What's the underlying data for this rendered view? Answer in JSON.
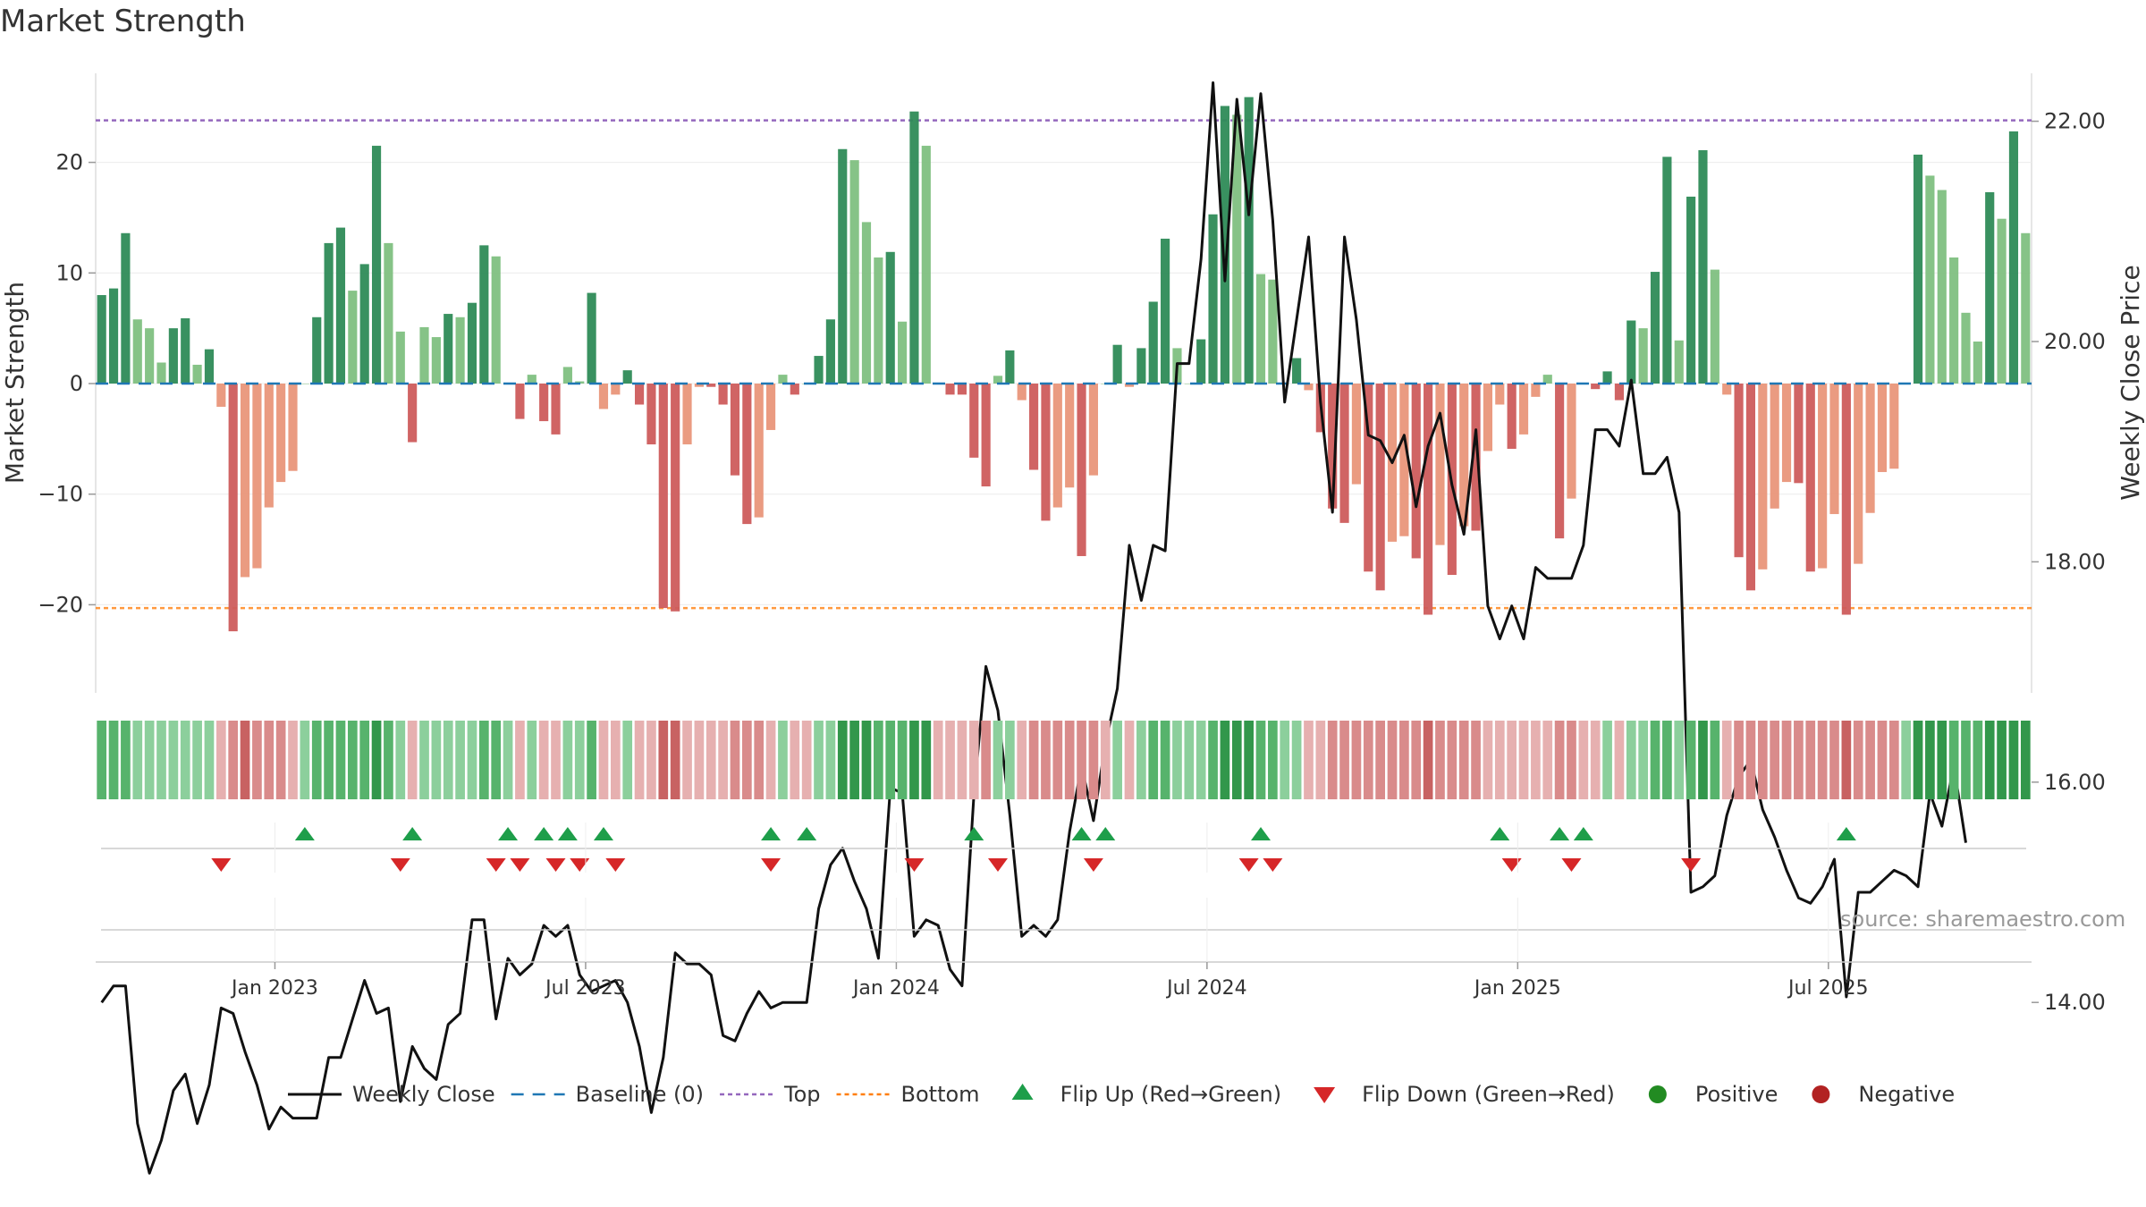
{
  "title": "Market Strength",
  "source": "source: sharemaestro.com",
  "colors": {
    "green_strong": "#2e8b57",
    "green_light": "#7fc081",
    "red_strong": "#cd5c5c",
    "red_light": "#e9967a",
    "close_line": "#111111",
    "baseline": "#1f77b4",
    "top_line": "#9467bd",
    "bottom_line": "#ff7f0e",
    "flip_up": "#1e9e4a",
    "flip_down": "#d62728",
    "positive": "#228b22",
    "negative": "#b22222"
  },
  "chart_data": {
    "type": "bar",
    "title": "Market Strength",
    "xlabel": "",
    "ylabel": "Market Strength",
    "y2label": "Weekly Close Price",
    "ylim": [
      -27.5,
      28
    ],
    "y2lim": [
      11.6,
      22.85
    ],
    "yticks": [
      20,
      10,
      0,
      -10,
      -20
    ],
    "y2ticks": [
      "22.00",
      "20.00",
      "18.00",
      "16.00",
      "14.00",
      "12.00"
    ],
    "xticks": [
      {
        "label": "Jan 2023",
        "week": 15
      },
      {
        "label": "Jul 2023",
        "week": 41
      },
      {
        "label": "Jan 2024",
        "week": 67
      },
      {
        "label": "Jul 2024",
        "week": 93
      },
      {
        "label": "Jan 2025",
        "week": 119
      },
      {
        "label": "Jul 2025",
        "week": 145
      }
    ],
    "top_level": 23.8,
    "bottom_level": -20.3,
    "strength": [
      8,
      8.6,
      13.6,
      5.8,
      5,
      1.9,
      5,
      5.9,
      1.7,
      3.1,
      -2.1,
      -22.4,
      -17.5,
      -16.7,
      -11.2,
      -8.9,
      -7.9,
      0,
      6,
      12.7,
      14.1,
      8.4,
      10.8,
      21.5,
      12.7,
      4.7,
      -5.3,
      5.1,
      4.2,
      6.3,
      6,
      7.3,
      12.5,
      11.5,
      0,
      -3.2,
      0.8,
      -3.4,
      -4.6,
      1.5,
      0.2,
      8.2,
      -2.3,
      -1,
      1.2,
      -1.9,
      -5.5,
      -20.3,
      -20.6,
      -5.5,
      -0.3,
      -0.3,
      -1.9,
      -8.3,
      -12.7,
      -12.1,
      -4.2,
      0.8,
      -1,
      0,
      2.5,
      5.8,
      21.2,
      20.2,
      14.6,
      11.4,
      11.9,
      5.6,
      24.6,
      21.5,
      0,
      -1,
      -1,
      -6.7,
      -9.3,
      0.7,
      3,
      -1.5,
      -7.8,
      -12.4,
      -11.2,
      -9.4,
      -15.6,
      -8.3,
      0,
      3.5,
      -0.3,
      3.2,
      7.4,
      13.1,
      3.2,
      0,
      4,
      15.3,
      25.1,
      24.3,
      25.9,
      9.9,
      9.4,
      0,
      2.3,
      -0.6,
      -4.4,
      -11.3,
      -12.6,
      -9.1,
      -17,
      -18.7,
      -14.3,
      -13.8,
      -15.8,
      -20.9,
      -14.6,
      -17.3,
      -12.9,
      -13.3,
      -6.1,
      -1.9,
      -5.9,
      -4.6,
      -1.2,
      0.8,
      -14,
      -10.4,
      0,
      -0.5,
      1.1,
      -1.5,
      5.7,
      5,
      10.1,
      20.5,
      3.9,
      16.9,
      21.1,
      10.3,
      -1,
      -15.7,
      -18.7,
      -16.8,
      -11.3,
      -8.9,
      -9,
      -17,
      -16.7,
      -11.8,
      -20.9,
      -16.3,
      -11.7,
      -8,
      -7.7,
      0,
      20.7,
      18.8,
      17.5,
      11.4,
      6.4,
      3.8,
      17.3,
      14.9,
      22.8,
      13.6
    ],
    "weekly_close": [
      14.0,
      14.15,
      14.15,
      12.9,
      12.45,
      12.75,
      13.2,
      13.35,
      12.9,
      13.25,
      13.95,
      13.9,
      13.55,
      13.25,
      12.85,
      13.05,
      12.95,
      12.95,
      12.95,
      13.5,
      13.5,
      13.85,
      14.2,
      13.9,
      13.95,
      13.1,
      13.6,
      13.4,
      13.3,
      13.8,
      13.9,
      14.75,
      14.75,
      13.85,
      14.4,
      14.25,
      14.35,
      14.7,
      14.6,
      14.7,
      14.25,
      14.1,
      14.15,
      14.2,
      14.0,
      13.6,
      13.0,
      13.5,
      14.45,
      14.35,
      14.35,
      14.25,
      13.7,
      13.65,
      13.9,
      14.1,
      13.95,
      14.0,
      14.0,
      14.0,
      14.85,
      15.25,
      15.4,
      15.1,
      14.85,
      14.4,
      15.95,
      15.9,
      14.6,
      14.75,
      14.7,
      14.3,
      14.15,
      15.9,
      17.05,
      16.65,
      15.7,
      14.6,
      14.7,
      14.6,
      14.75,
      15.55,
      16.15,
      15.65,
      16.35,
      16.85,
      18.15,
      17.65,
      18.15,
      18.1,
      19.8,
      19.8,
      20.75,
      22.35,
      20.55,
      22.2,
      21.15,
      22.25,
      21.1,
      19.45,
      20.2,
      20.95,
      19.45,
      18.45,
      20.95,
      20.2,
      19.15,
      19.1,
      18.9,
      19.15,
      18.5,
      19.05,
      19.35,
      18.7,
      18.25,
      19.2,
      17.6,
      17.3,
      17.6,
      17.3,
      17.95,
      17.85,
      17.85,
      17.85,
      18.15,
      19.2,
      19.2,
      19.05,
      19.65,
      18.8,
      18.8,
      18.95,
      18.45,
      15.0,
      15.05,
      15.15,
      15.7,
      16.05,
      16.2,
      15.75,
      15.5,
      15.2,
      14.95,
      14.9,
      15.05,
      15.3,
      14.05,
      15.0,
      15.0,
      15.1,
      15.2,
      15.15,
      15.05,
      15.9,
      15.6,
      16.15,
      15.45
    ],
    "strip_color_levels": [
      2,
      2,
      2,
      1,
      1,
      1,
      1,
      1,
      1,
      1,
      -1,
      -2,
      -3,
      -2,
      -2,
      -2,
      -1,
      1,
      2,
      2,
      2,
      2,
      2,
      3,
      2,
      1,
      -1,
      1,
      1,
      1,
      1,
      1,
      2,
      2,
      1,
      -1,
      1,
      -1,
      -1,
      1,
      1,
      2,
      -1,
      -1,
      1,
      -1,
      -1,
      -3,
      -3,
      -1,
      -1,
      -1,
      -1,
      -2,
      -2,
      -2,
      -1,
      1,
      -1,
      -1,
      1,
      1,
      3,
      3,
      3,
      2,
      2,
      2,
      3,
      3,
      -1,
      -1,
      -1,
      -1,
      -2,
      1,
      1,
      -1,
      -2,
      -2,
      -2,
      -2,
      -2,
      -2,
      -1,
      1,
      -1,
      1,
      2,
      2,
      1,
      1,
      1,
      2,
      3,
      3,
      3,
      2,
      2,
      1,
      1,
      -1,
      -1,
      -2,
      -2,
      -2,
      -2,
      -2,
      -2,
      -2,
      -2,
      -3,
      -2,
      -2,
      -2,
      -2,
      -1,
      -1,
      -1,
      -1,
      -1,
      -1,
      -2,
      -2,
      -1,
      -1,
      1,
      -1,
      1,
      1,
      2,
      2,
      1,
      2,
      3,
      2,
      -1,
      -2,
      -2,
      -2,
      -2,
      -2,
      -2,
      -2,
      -2,
      -2,
      -3,
      -2,
      -2,
      -2,
      -2,
      1,
      3,
      3,
      3,
      2,
      2,
      2,
      3,
      3,
      3,
      3
    ],
    "flip_up_weeks": [
      17,
      26,
      34,
      37,
      39,
      42,
      56,
      59,
      73,
      82,
      84,
      97,
      117,
      122,
      124,
      146
    ],
    "flip_down_weeks": [
      10,
      25,
      33,
      35,
      38,
      40,
      43,
      56,
      68,
      75,
      83,
      96,
      98,
      118,
      123,
      133
    ],
    "legend": [
      {
        "label": "Weekly Close",
        "kind": "line"
      },
      {
        "label": "Baseline (0)",
        "kind": "dash"
      },
      {
        "label": "Top",
        "kind": "dot-purple"
      },
      {
        "label": "Bottom",
        "kind": "dot-orange"
      },
      {
        "label": "Flip Up (Red→Green)",
        "kind": "tri-up"
      },
      {
        "label": "Flip Down (Green→Red)",
        "kind": "tri-down"
      },
      {
        "label": "Positive",
        "kind": "dot-green"
      },
      {
        "label": "Negative",
        "kind": "dot-red"
      }
    ],
    "legend_position": "bottom-center"
  }
}
